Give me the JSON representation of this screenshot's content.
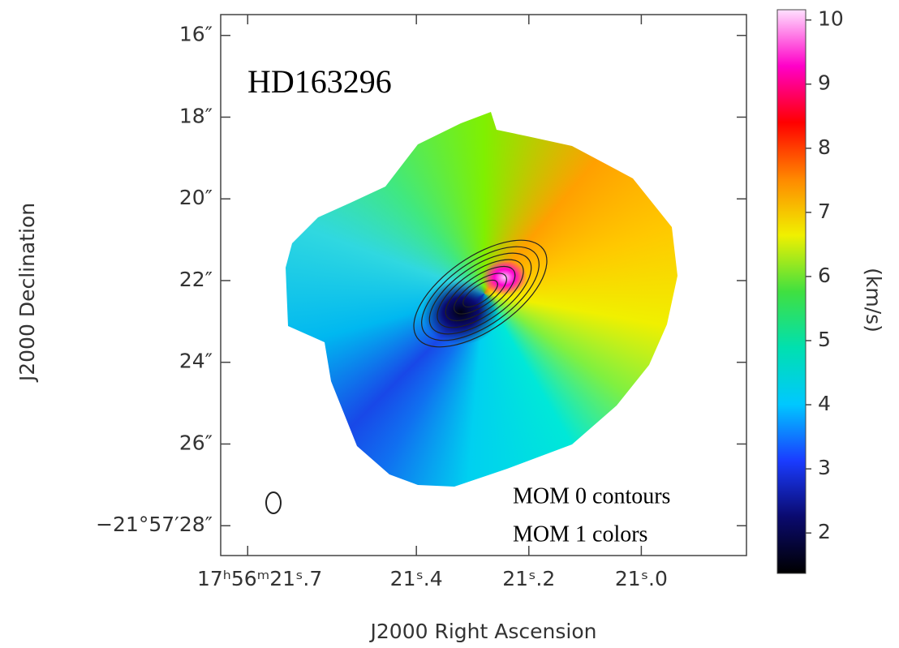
{
  "chart_data": {
    "type": "image",
    "title": "HD163296",
    "annotations": [
      "MOM 0 contours",
      "MOM 1 colors"
    ],
    "xlabel": "J2000 Right Ascension",
    "ylabel": "J2000 Declination",
    "xlim": [
      21.748,
      20.813
    ],
    "xticks": [
      {
        "value": 21.7,
        "label": "17ʰ56ᵐ21ˢ.7"
      },
      {
        "value": 21.4,
        "label": "21ˢ.4"
      },
      {
        "value": 21.2,
        "label": "21ˢ.2"
      },
      {
        "value": 21.0,
        "label": "21ˢ.0"
      }
    ],
    "ylim": [
      15.49,
      28.73
    ],
    "yticks": [
      {
        "value": 16,
        "label": "16″"
      },
      {
        "value": 18,
        "label": "18″"
      },
      {
        "value": 20,
        "label": "20″"
      },
      {
        "value": 22,
        "label": "22″"
      },
      {
        "value": 24,
        "label": "24″"
      },
      {
        "value": 26,
        "label": "26″"
      },
      {
        "value": 28,
        "label": "−21°57′28″"
      }
    ],
    "colorbar": {
      "label": "(km/s)",
      "lim": [
        1.37,
        10.16
      ],
      "ticks": [
        2,
        3,
        4,
        5,
        6,
        7,
        8,
        9,
        10
      ],
      "colors": [
        "#000000",
        "#0a0a6e",
        "#1a3cff",
        "#00c8ff",
        "#00e0b0",
        "#40e040",
        "#f0f000",
        "#ff8800",
        "#ff0000",
        "#ff00c8",
        "#ffe0ff"
      ]
    }
  }
}
